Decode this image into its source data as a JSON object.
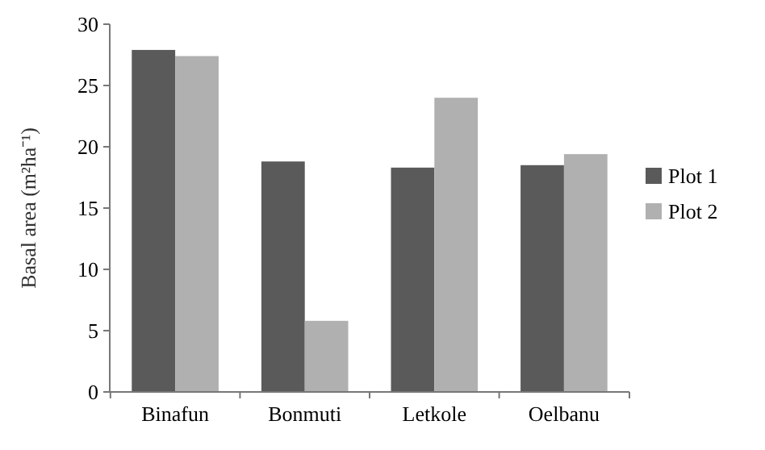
{
  "chart_data": {
    "type": "bar",
    "ylabel": "Basal area (m²ha⁻¹)",
    "categories": [
      "Binafun",
      "Bonmuti",
      "Letkole",
      "Oelbanu"
    ],
    "series": [
      {
        "name": "Plot 1",
        "color": "#5a5a5a",
        "values": [
          27.9,
          18.8,
          18.3,
          18.5
        ]
      },
      {
        "name": "Plot 2",
        "color": "#b0b0b0",
        "values": [
          27.4,
          5.8,
          24.0,
          19.4
        ]
      }
    ],
    "ylim": [
      0,
      30
    ],
    "yticks": [
      0,
      5,
      10,
      15,
      20,
      25,
      30
    ],
    "grid": false,
    "legend": "right"
  }
}
